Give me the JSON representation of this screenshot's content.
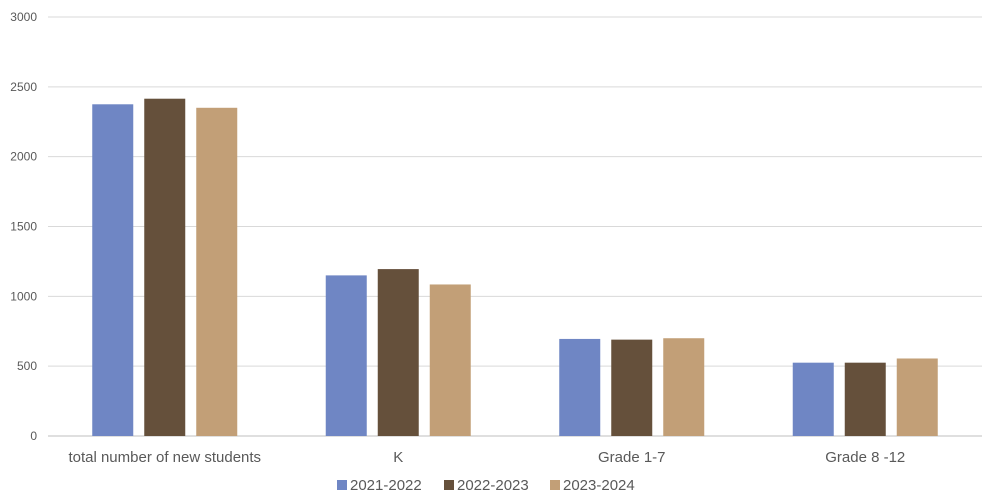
{
  "chart_data": {
    "type": "bar",
    "title": "",
    "xlabel": "",
    "ylabel": "",
    "ylim": [
      0,
      3000
    ],
    "yticks": [
      0,
      500,
      1000,
      1500,
      2000,
      2500,
      3000
    ],
    "grid": true,
    "legend_position": "bottom",
    "categories": [
      "total number of new students",
      "K",
      "Grade 1-7",
      "Grade 8 -12"
    ],
    "series": [
      {
        "name": "2021-2022",
        "color": "#6f86c4",
        "values": [
          2375,
          1150,
          695,
          525
        ]
      },
      {
        "name": "2022-2023",
        "color": "#65503b",
        "values": [
          2415,
          1195,
          690,
          525
        ]
      },
      {
        "name": "2023-2024",
        "color": "#c29f77",
        "values": [
          2350,
          1085,
          700,
          555
        ]
      }
    ]
  }
}
